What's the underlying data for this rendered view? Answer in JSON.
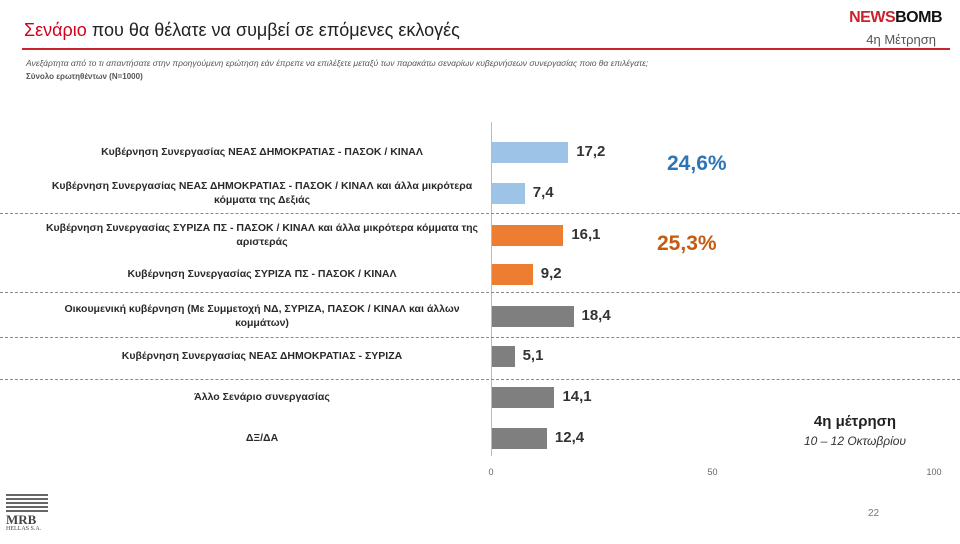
{
  "header": {
    "title_highlight": "Σενάριο",
    "title_rest": " που θα θέλατε να συμβεί σε επόμενες εκλογές",
    "logo_news": "NEWS",
    "logo_bomb": "BOMB",
    "wave_label": "4η Μέτρηση",
    "question": "Ανεξάρτητα από το τι απαντήσατε στην προηγούμενη ερώτηση εάν έπρεπε να επιλέξετε μεταξύ των παρακάτω σεναρίων κυβερνήσεων συνεργασίας ποιο θα επιλέγατε;",
    "sample": "Σύνολο ερωτηθέντων (Ν=1000)"
  },
  "chart_data": {
    "type": "bar",
    "orientation": "horizontal",
    "categories": [
      "Κυβέρνηση Συνεργασίας ΝΕΑΣ ΔΗΜΟΚΡΑΤΙΑΣ - ΠΑΣΟΚ / ΚΙΝΑΛ",
      "Κυβέρνηση Συνεργασίας ΝΕΑΣ ΔΗΜΟΚΡΑΤΙΑΣ - ΠΑΣΟΚ / ΚΙΝΑΛ και άλλα μικρότερα κόμματα της Δεξιάς",
      "Κυβέρνηση Συνεργασίας ΣΥΡΙΖΑ ΠΣ - ΠΑΣΟΚ / ΚΙΝΑΛ και άλλα μικρότερα κόμματα της αριστεράς",
      "Κυβέρνηση Συνεργασίας ΣΥΡΙΖΑ ΠΣ - ΠΑΣΟΚ / ΚΙΝΑΛ",
      "Οικουμενική κυβέρνηση (Με Συμμετοχή ΝΔ, ΣΥΡΙΖΑ, ΠΑΣΟΚ / ΚΙΝΑΛ και άλλων κομμάτων)",
      "Κυβέρνηση Συνεργασίας ΝΕΑΣ ΔΗΜΟΚΡΑΤΙΑΣ - ΣΥΡΙΖΑ",
      "Άλλο Σενάριο συνεργασίας",
      "ΔΞ/ΔΑ"
    ],
    "values": [
      17.2,
      7.4,
      16.1,
      9.2,
      18.4,
      5.1,
      14.1,
      12.4
    ],
    "value_labels": [
      "17,2",
      "7,4",
      "16,1",
      "9,2",
      "18,4",
      "5,1",
      "14,1",
      "12,4"
    ],
    "bar_colors": [
      "#9dc3e6",
      "#9dc3e6",
      "#ed7d31",
      "#ed7d31",
      "#7f7f7f",
      "#7f7f7f",
      "#7f7f7f",
      "#7f7f7f"
    ],
    "xlim": [
      0,
      100
    ],
    "x_ticks": [
      "0",
      "50",
      "100"
    ],
    "group_totals": [
      {
        "label": "24,6%",
        "color": "#2e75b6"
      },
      {
        "label": "25,3%",
        "color": "#c55a11"
      }
    ],
    "grid": false
  },
  "annotation": {
    "wave": "4η μέτρηση",
    "dates": "10 – 12 Οκτωβρίου"
  },
  "footer": {
    "page_number": "22",
    "mrb_name": "MRB",
    "mrb_sub": "HELLAS S.A."
  }
}
